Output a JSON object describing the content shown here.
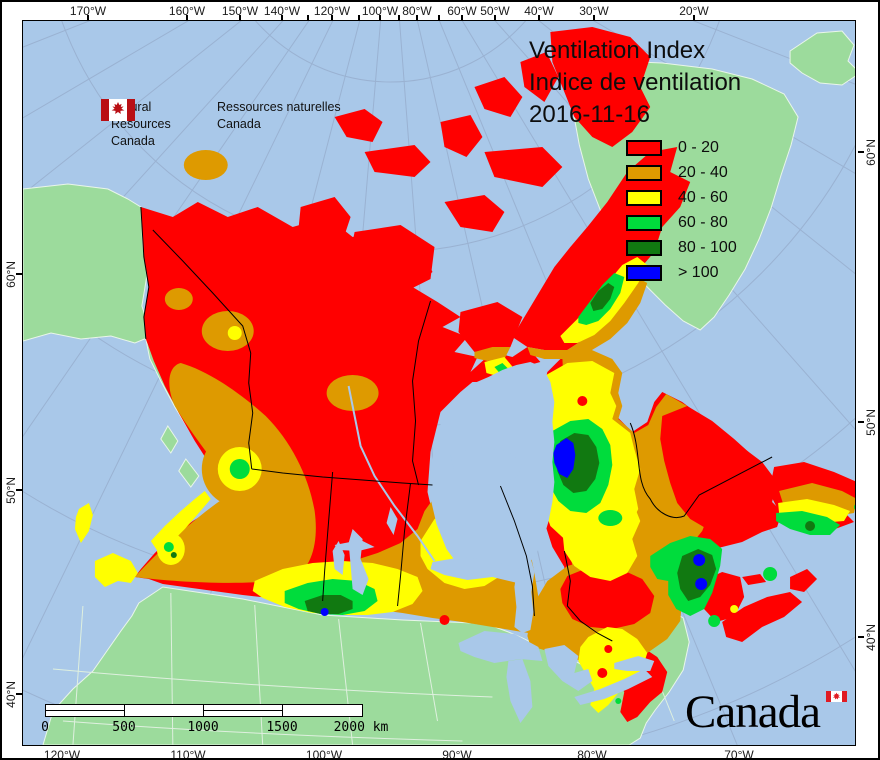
{
  "signature": {
    "en_line1": "Natural Resources",
    "en_line2": "Canada",
    "fr_line1": "Ressources naturelles",
    "fr_line2": "Canada"
  },
  "title": {
    "line1": "Ventilation Index",
    "line2": "Indice de ventilation",
    "date": "2016-11-16"
  },
  "legend": {
    "items": [
      {
        "label": "0 - 20",
        "color": "#FF0000"
      },
      {
        "label": "20 - 40",
        "color": "#DE9A00"
      },
      {
        "label": "40 - 60",
        "color": "#FFFF00"
      },
      {
        "label": "60 - 80",
        "color": "#00DC3C"
      },
      {
        "label": "80 - 100",
        "color": "#117911"
      },
      {
        "label": "> 100",
        "color": "#0000FF"
      }
    ]
  },
  "axes": {
    "top": [
      "170°W",
      "160°W",
      "150°W",
      "140°W",
      "120°W",
      "100°W",
      "80°W",
      "60°W",
      "50°W",
      "40°W",
      "30°W",
      "20°W"
    ],
    "bottom": [
      "120°W",
      "110°W",
      "100°W",
      "90°W",
      "80°W",
      "70°W"
    ],
    "left": [
      "60°N",
      "50°N",
      "40°N"
    ],
    "right": [
      "60°N",
      "50°N",
      "40°N"
    ]
  },
  "scalebar": {
    "ticks": [
      "0",
      "500",
      "1000",
      "1500",
      "2000"
    ],
    "unit": "km"
  },
  "wordmark": {
    "text": "Canada"
  },
  "map": {
    "colors": {
      "ocean": "#A9C8E9",
      "foreign_land": "#9CDB9C",
      "foreign_stroke": "#E9F6E9",
      "graticule": "#9AB2D2",
      "boundary": "#000000",
      "state_line": "#DFF0DF",
      "flag_red": "#B90F14",
      "wordmark_flag_red": "#E01B23"
    }
  }
}
